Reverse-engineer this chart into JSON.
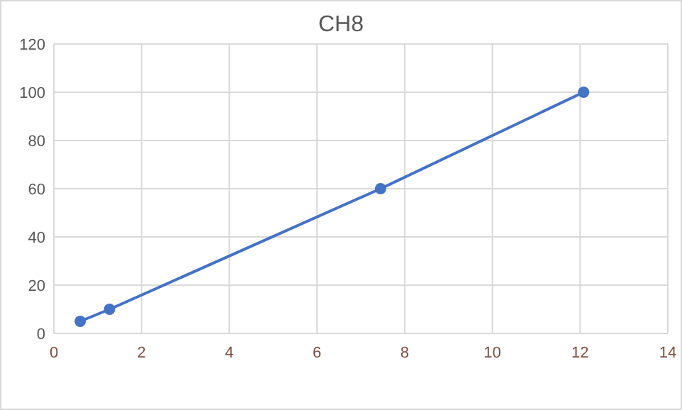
{
  "chart_data": {
    "type": "line",
    "title": "CH8",
    "series": [
      {
        "color": "#4472c4",
        "x": [
          0.6,
          1.27,
          7.45,
          12.08
        ],
        "values": [
          5,
          10,
          60,
          100
        ]
      }
    ],
    "xlim": [
      0,
      14
    ],
    "xticks": [
      0,
      2,
      4,
      6,
      8,
      10,
      12,
      14
    ],
    "ylim": [
      0,
      120
    ],
    "yticks": [
      0,
      20,
      40,
      60,
      80,
      100,
      120
    ],
    "grid": true,
    "marker": "circle",
    "line_style": "solid"
  }
}
